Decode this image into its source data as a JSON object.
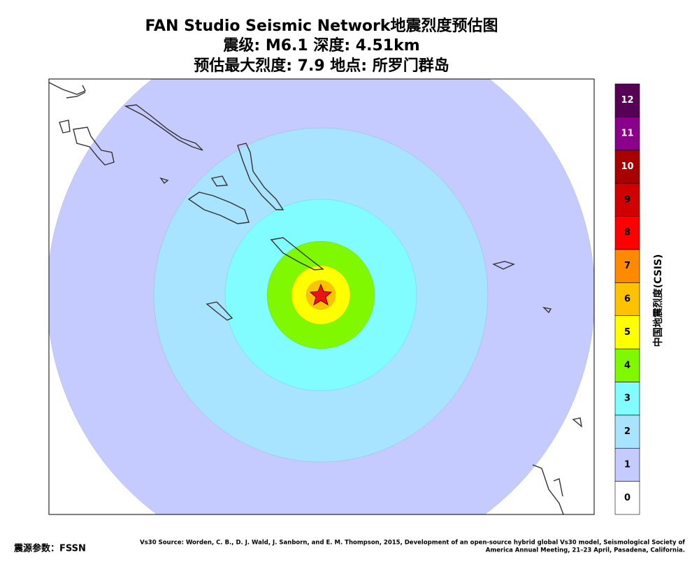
{
  "header": {
    "title": "FAN Studio Seismic Network地震烈度预估图",
    "line2": "震级: M6.1  深度: 4.51km",
    "line3": "预估最大烈度: 7.9  地点: 所罗门群岛"
  },
  "colorbar": {
    "title": "中国地震烈度(CSIS)",
    "levels": [
      0,
      1,
      2,
      3,
      4,
      5,
      6,
      7,
      8,
      9,
      10,
      11,
      12
    ],
    "colors": [
      "#ffffff",
      "#c6cbff",
      "#a8e3ff",
      "#82fdff",
      "#80f800",
      "#ffff00",
      "#ffc200",
      "#ff8a00",
      "#ff0000",
      "#d00000",
      "#a80000",
      "#8a008a",
      "#560056"
    ]
  },
  "footer": {
    "source": "震源参数：FSSN",
    "vs30_line1": "Vs30 Source: Worden, C. B., D. J. Wald, J. Sanborn, and E. M. Thompson, 2015, Development of an open-source hybrid global Vs30 model, Seismological Society of",
    "vs30_line2": "America Annual Meeting, 21–23 April, Pasadena, California."
  }
}
